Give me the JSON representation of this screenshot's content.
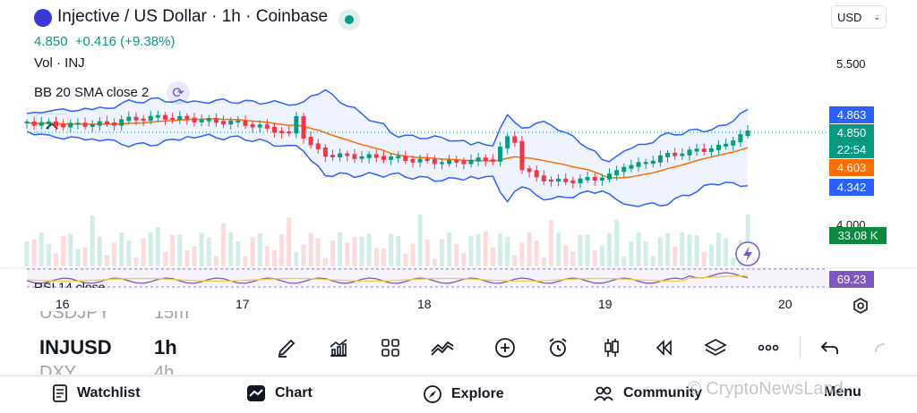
{
  "header": {
    "title": "Injective / US Dollar · 1h · Coinbase",
    "price": "4.850",
    "change": "+0.416 (+9.38%)",
    "currency": "USD"
  },
  "indicators": {
    "volume_label": "Vol · INJ",
    "bb_label": "BB 20 SMA close 2",
    "rsi_label": "RSI 14 close"
  },
  "price_axis": {
    "ticks": [
      "5.500",
      "4.000"
    ],
    "tags": {
      "bb_upper": "4.863",
      "last_price": "4.850",
      "countdown": "22:54",
      "bb_basis": "4.603",
      "bb_lower": "4.342",
      "volume": "33.08 K",
      "rsi": "69.23"
    }
  },
  "time_axis": {
    "ticks": [
      "16",
      "17",
      "18",
      "19",
      "20"
    ]
  },
  "symbols": {
    "prev_symbol": "USDJPY",
    "prev_interval": "15m",
    "current_symbol": "INJUSD",
    "current_interval": "1h",
    "next_symbol": "DXY",
    "next_interval": "4h"
  },
  "toolbar": {
    "icons": [
      "pen-icon",
      "chart-indicators-icon",
      "layout-grid-icon",
      "drawing-tools-icon",
      "add-icon",
      "alert-clock-icon",
      "candle-type-icon",
      "replay-icon",
      "layers-icon",
      "more-icon",
      "undo-icon",
      "redo-icon"
    ]
  },
  "bottom_nav": {
    "watchlist": "Watchlist",
    "chart": "Chart",
    "explore": "Explore",
    "community": "Community",
    "menu": "Menu"
  },
  "watermark": "© CryptoNewsLand",
  "colors": {
    "up": "#089981",
    "down": "#f23645",
    "bb_band": "#2962ff",
    "bb_basis": "#ff6d00",
    "rsi": "#7e57c2",
    "volume_tag": "#089981"
  },
  "chart_data": {
    "type": "candlestick",
    "x_ticks": [
      "16",
      "17",
      "18",
      "19",
      "20"
    ],
    "y_ticks": [
      "5.500",
      "4.000"
    ],
    "last_price": 4.85,
    "bb_upper_last": 4.863,
    "bb_basis_last": 4.603,
    "bb_lower_last": 4.342,
    "volume_last": "33.08 K",
    "rsi_last": 69.23
  }
}
